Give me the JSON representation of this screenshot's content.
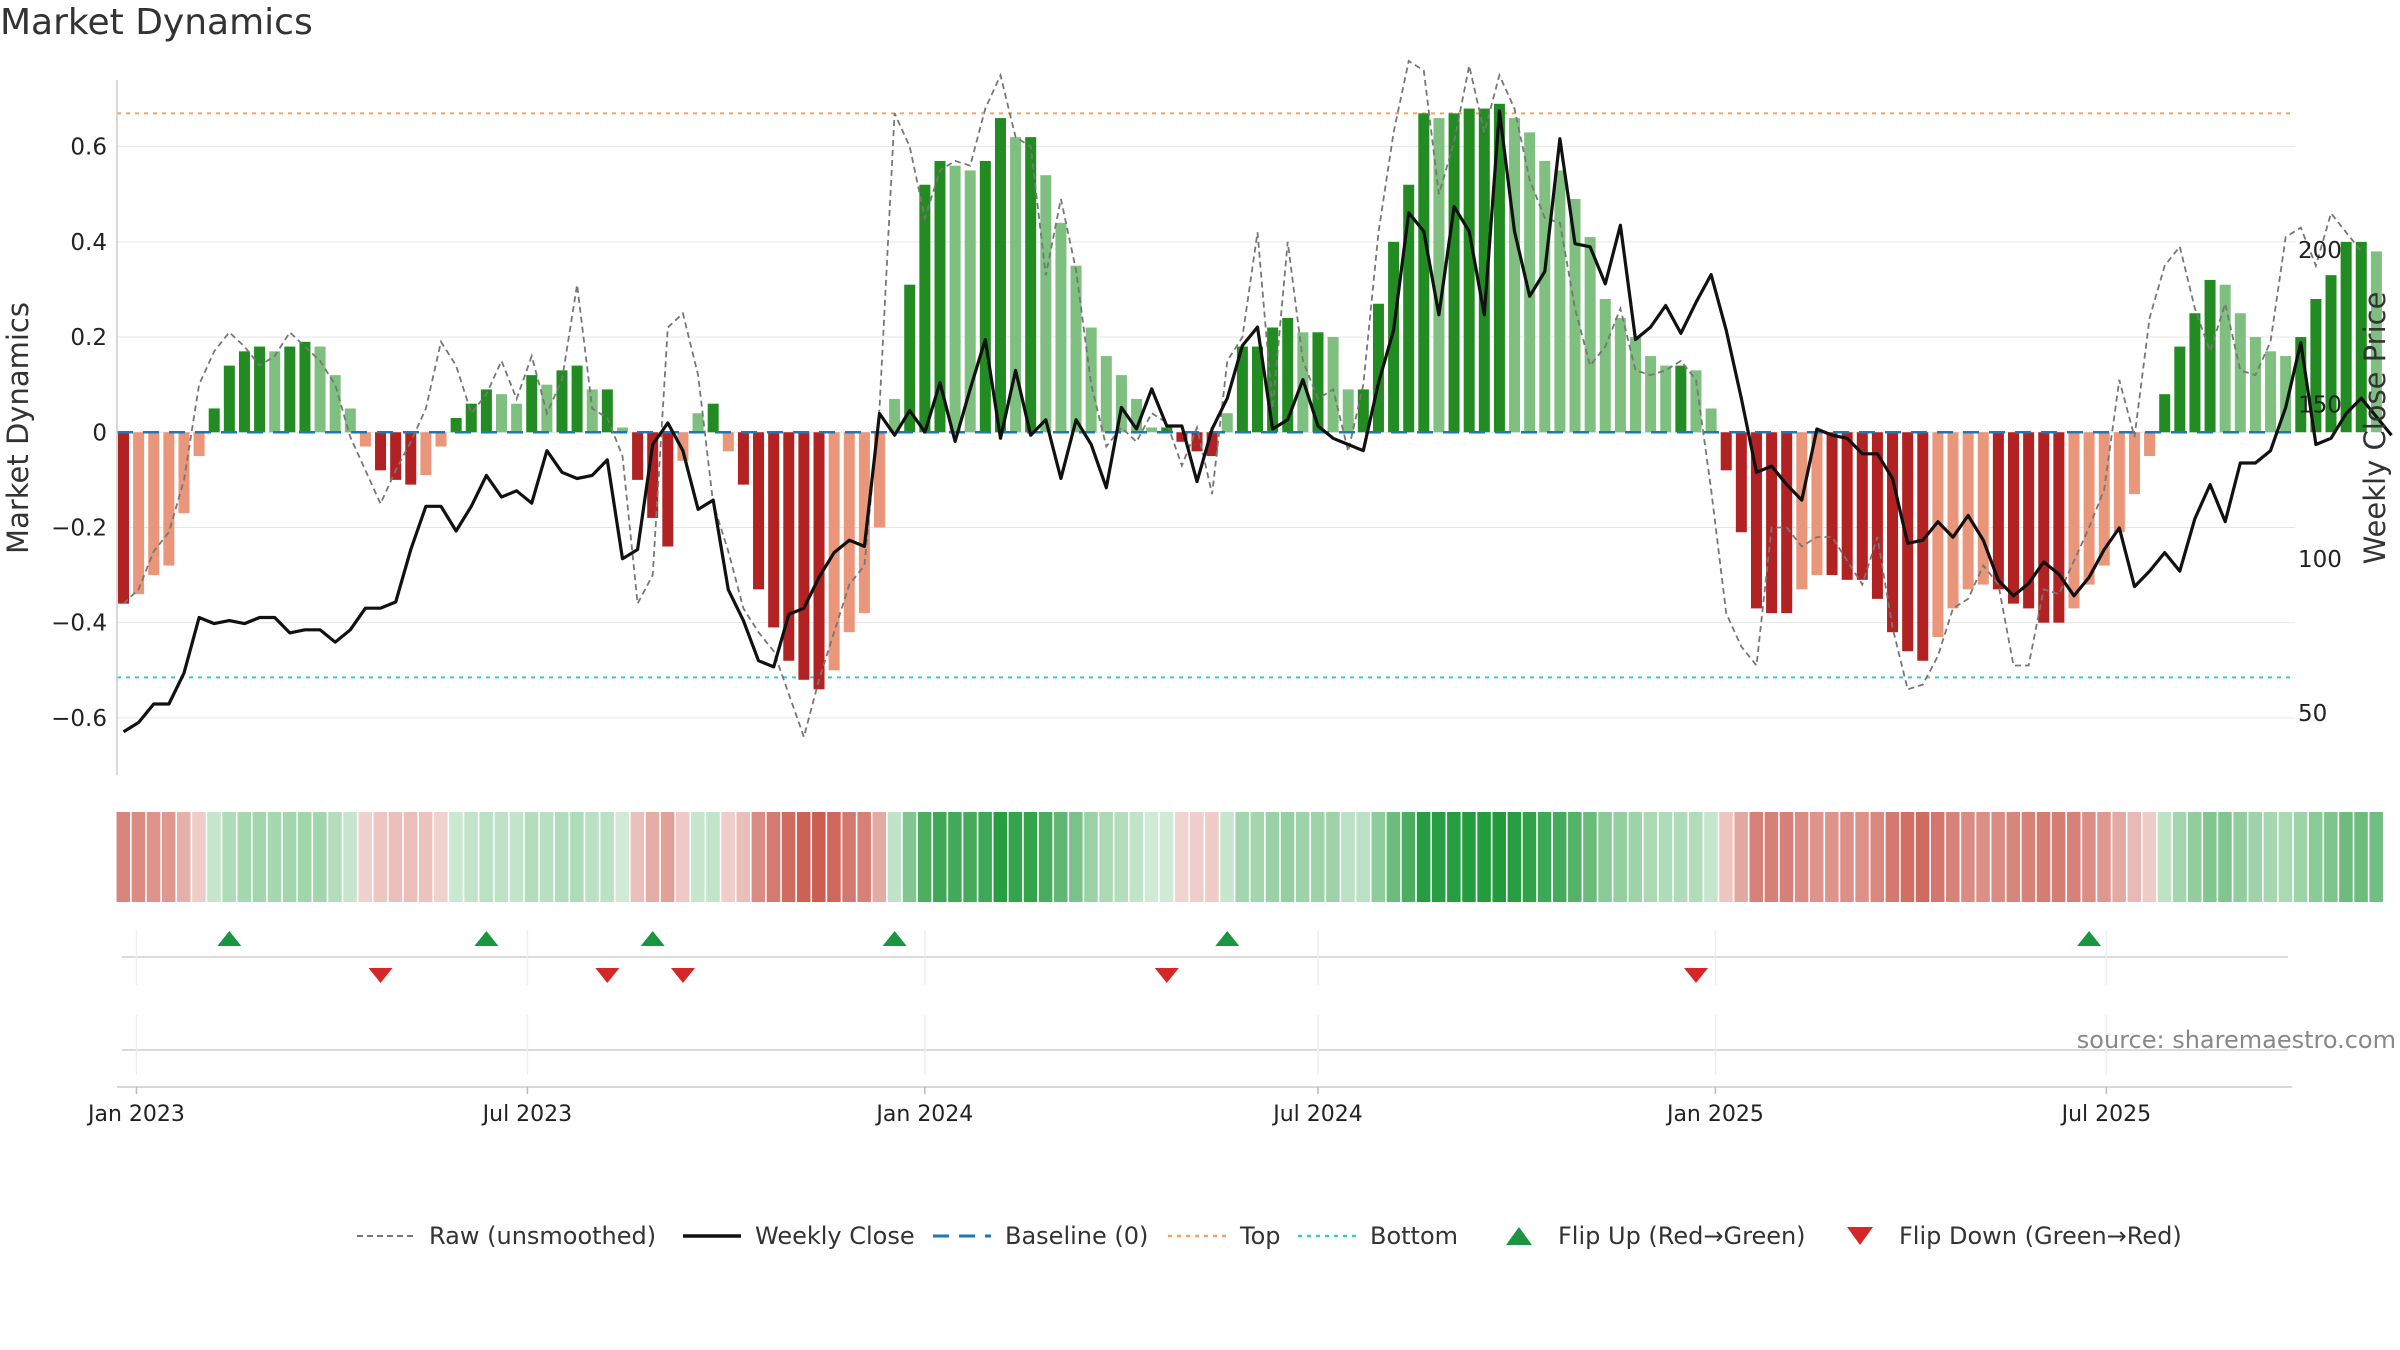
{
  "title": "Market Dynamics",
  "source": "source: sharemaestro.com",
  "colors": {
    "strong_green": "#228b22",
    "light_green": "#7fbf7f",
    "strong_red": "#b22222",
    "light_red": "#e9967a",
    "top_line": "#f4a460",
    "bottom_line": "#40c4d4",
    "baseline": "#1f77b4",
    "raw": "#777777",
    "close": "#111111",
    "flip_up": "#1a9641",
    "flip_down": "#d62728"
  },
  "chart_data": {
    "type": "bar",
    "title": "Market Dynamics",
    "ylabel": "Market Dynamics",
    "y2label": "Weekly Close Price",
    "ylim": [
      -0.72,
      0.74
    ],
    "y2lim": [
      30,
      255
    ],
    "yticks": [
      0.6,
      0.4,
      0.2,
      0,
      -0.2,
      -0.4,
      -0.6
    ],
    "ytick_labels": [
      "0.6",
      "0.4",
      "0.2",
      "0",
      "−0.2",
      "−0.4",
      "−0.6"
    ],
    "y2ticks": [
      200,
      150,
      100,
      50
    ],
    "y2tick_labels": [
      "200",
      "150",
      "100",
      "50"
    ],
    "x_start": "2022-12-26",
    "x_labels": [
      {
        "date": "2023-01-01",
        "label": "Jan 2023"
      },
      {
        "date": "2023-07-01",
        "label": "Jul 2023"
      },
      {
        "date": "2024-01-01",
        "label": "Jan 2024"
      },
      {
        "date": "2024-07-01",
        "label": "Jul 2024"
      },
      {
        "date": "2025-01-01",
        "label": "Jan 2025"
      },
      {
        "date": "2025-07-01",
        "label": "Jul 2025"
      }
    ],
    "top": 0.67,
    "bottom": -0.515,
    "baseline": 0,
    "values": [
      -0.36,
      -0.34,
      -0.3,
      -0.28,
      -0.17,
      -0.05,
      0.05,
      0.14,
      0.17,
      0.18,
      0.17,
      0.18,
      0.19,
      0.18,
      0.12,
      0.05,
      -0.03,
      -0.08,
      -0.1,
      -0.11,
      -0.09,
      -0.03,
      0.03,
      0.06,
      0.09,
      0.08,
      0.06,
      0.12,
      0.1,
      0.13,
      0.14,
      0.09,
      0.09,
      0.01,
      -0.1,
      -0.18,
      -0.24,
      -0.06,
      0.04,
      0.06,
      -0.04,
      -0.11,
      -0.33,
      -0.41,
      -0.48,
      -0.52,
      -0.54,
      -0.5,
      -0.42,
      -0.38,
      -0.2,
      0.07,
      0.31,
      0.52,
      0.57,
      0.56,
      0.55,
      0.57,
      0.66,
      0.62,
      0.62,
      0.54,
      0.44,
      0.35,
      0.22,
      0.16,
      0.12,
      0.07,
      0.01,
      0.01,
      -0.02,
      -0.04,
      -0.05,
      0.04,
      0.18,
      0.18,
      0.22,
      0.24,
      0.21,
      0.21,
      0.2,
      0.09,
      0.09,
      0.27,
      0.4,
      0.52,
      0.67,
      0.66,
      0.67,
      0.68,
      0.68,
      0.69,
      0.66,
      0.63,
      0.57,
      0.55,
      0.49,
      0.41,
      0.28,
      0.24,
      0.2,
      0.16,
      0.14,
      0.14,
      0.13,
      0.05,
      -0.08,
      -0.21,
      -0.37,
      -0.38,
      -0.38,
      -0.33,
      -0.3,
      -0.3,
      -0.31,
      -0.31,
      -0.35,
      -0.42,
      -0.46,
      -0.48,
      -0.43,
      -0.37,
      -0.33,
      -0.32,
      -0.33,
      -0.36,
      -0.37,
      -0.4,
      -0.4,
      -0.37,
      -0.32,
      -0.28,
      -0.21,
      -0.13,
      -0.05,
      0.08,
      0.18,
      0.25,
      0.32,
      0.31,
      0.25,
      0.2,
      0.17,
      0.16,
      0.2,
      0.28,
      0.33,
      0.4,
      0.4,
      0.38
    ],
    "series": [
      {
        "name": "Raw (unsmoothed)",
        "values": [
          -0.36,
          -0.33,
          -0.25,
          -0.21,
          -0.1,
          0.1,
          0.17,
          0.21,
          0.18,
          0.14,
          0.16,
          0.21,
          0.18,
          0.15,
          0.1,
          -0.01,
          -0.08,
          -0.15,
          -0.08,
          -0.02,
          0.05,
          0.19,
          0.14,
          0.04,
          0.08,
          0.15,
          0.07,
          0.16,
          0.04,
          0.11,
          0.31,
          0.05,
          0.03,
          -0.05,
          -0.36,
          -0.3,
          0.22,
          0.25,
          0.12,
          -0.15,
          -0.25,
          -0.37,
          -0.42,
          -0.46,
          -0.55,
          -0.64,
          -0.52,
          -0.42,
          -0.32,
          -0.28,
          0.05,
          0.67,
          0.6,
          0.45,
          0.55,
          0.57,
          0.56,
          0.68,
          0.75,
          0.62,
          0.6,
          0.33,
          0.49,
          0.34,
          0.1,
          -0.03,
          0.01,
          -0.02,
          0.04,
          0.02,
          -0.07,
          0.01,
          -0.13,
          0.15,
          0.2,
          0.42,
          0.05,
          0.4,
          0.15,
          0.07,
          0.09,
          -0.04,
          0.1,
          0.42,
          0.63,
          0.78,
          0.76,
          0.5,
          0.61,
          0.77,
          0.63,
          0.75,
          0.68,
          0.53,
          0.45,
          0.44,
          0.26,
          0.14,
          0.18,
          0.26,
          0.13,
          0.12,
          0.13,
          0.15,
          0.11,
          -0.12,
          -0.38,
          -0.45,
          -0.49,
          -0.2,
          -0.2,
          -0.24,
          -0.22,
          -0.22,
          -0.27,
          -0.32,
          -0.22,
          -0.41,
          -0.54,
          -0.53,
          -0.47,
          -0.37,
          -0.35,
          -0.28,
          -0.32,
          -0.49,
          -0.49,
          -0.33,
          -0.34,
          -0.27,
          -0.2,
          -0.12,
          0.11,
          -0.01,
          0.24,
          0.35,
          0.39,
          0.26,
          0.17,
          0.27,
          0.13,
          0.12,
          0.19,
          0.41,
          0.43,
          0.35,
          0.46,
          0.42,
          0.38
        ]
      },
      {
        "name": "Weekly Close",
        "axis": "right",
        "values": [
          44,
          47,
          53,
          53,
          63,
          81,
          79,
          80,
          79,
          81,
          81,
          76,
          77,
          77,
          73,
          77,
          84,
          84,
          86,
          103,
          117,
          117,
          109,
          117,
          127,
          120,
          122,
          118,
          135,
          128,
          126,
          127,
          132,
          100,
          103,
          137,
          144,
          135,
          116,
          119,
          90,
          80,
          67,
          65,
          82,
          84,
          94,
          102,
          106,
          104,
          147,
          140,
          148,
          141,
          157,
          138,
          155,
          171,
          139,
          161,
          140,
          145,
          126,
          145,
          137,
          123,
          149,
          142,
          155,
          143,
          143,
          125,
          142,
          152,
          169,
          175,
          142,
          145,
          158,
          143,
          139,
          137,
          135,
          157,
          174,
          212,
          206,
          179,
          214,
          206,
          179,
          245,
          206,
          185,
          193,
          236,
          202,
          201,
          189,
          208,
          171,
          175,
          182,
          173,
          183,
          192,
          174,
          152,
          128,
          130,
          124,
          119,
          142,
          140,
          139,
          134,
          134,
          126,
          105,
          106,
          112,
          107,
          114,
          106,
          93,
          88,
          92,
          99,
          95,
          88,
          94,
          103,
          110,
          91,
          96,
          102,
          96,
          113,
          124,
          112,
          131,
          131,
          135,
          149,
          170,
          137,
          139,
          147,
          152,
          146,
          140
        ]
      }
    ],
    "ribbon_note": "Ribbon below the main chart is a per-week intensity strip: green for positive values, red for negative, opacity by magnitude.",
    "flip_up": [
      "2023-02-13",
      "2023-06-12",
      "2023-08-28",
      "2023-12-18",
      "2024-05-20",
      "2025-06-23"
    ],
    "flip_down": [
      "2023-04-24",
      "2023-08-07",
      "2023-09-11",
      "2024-04-22",
      "2024-12-23"
    ],
    "legend": [
      {
        "label": "Raw (unsmoothed)",
        "kind": "dashed",
        "color": "#777777"
      },
      {
        "label": "Weekly Close",
        "kind": "solid",
        "color": "#111111"
      },
      {
        "label": "Baseline (0)",
        "kind": "longdash",
        "color": "#1f77b4"
      },
      {
        "label": "Top",
        "kind": "dotted",
        "color": "#f4a460"
      },
      {
        "label": "Bottom",
        "kind": "dotted",
        "color": "#40c4d4"
      },
      {
        "label": "Flip Up (Red→Green)",
        "kind": "triangle-up",
        "color": "#1a9641"
      },
      {
        "label": "Flip Down (Green→Red)",
        "kind": "triangle-down",
        "color": "#d62728"
      }
    ],
    "legend_position": "bottom-center",
    "grid": true
  }
}
